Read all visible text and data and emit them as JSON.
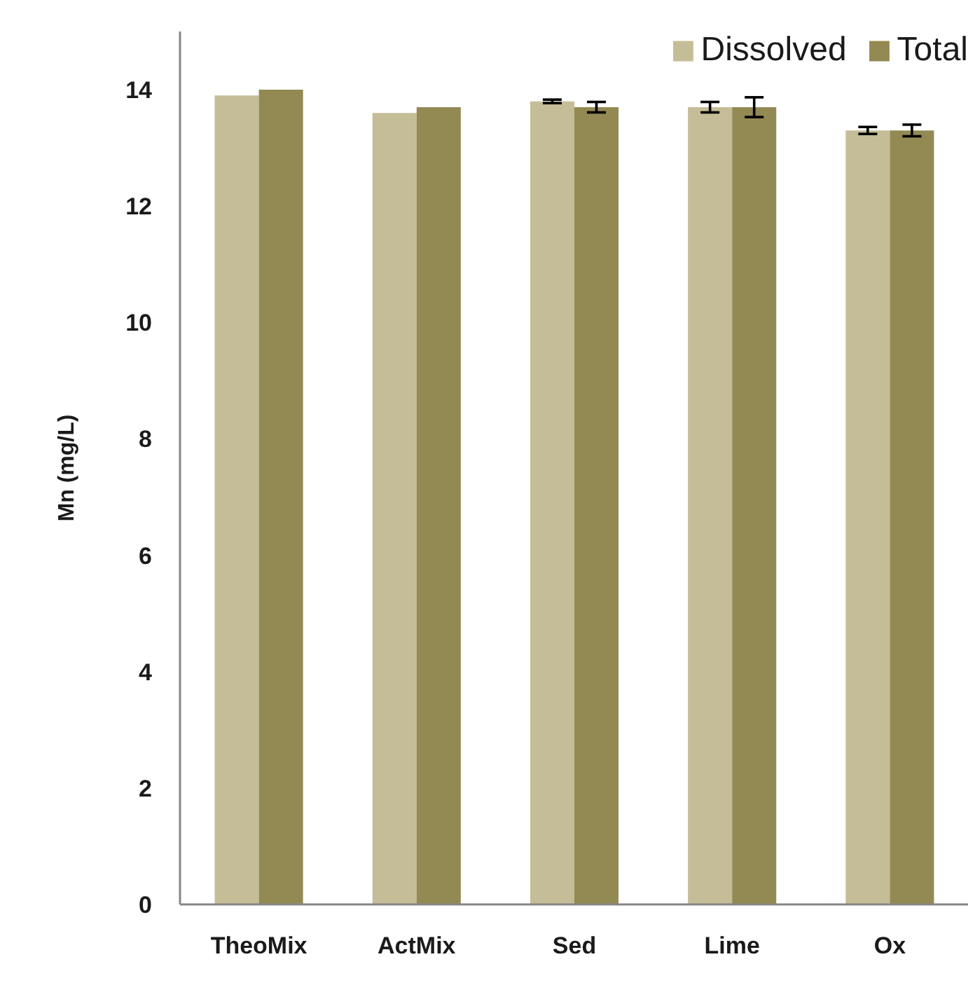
{
  "chart_data": {
    "type": "bar",
    "ylabel": "Mn (mg/L)",
    "categories": [
      "TheoMix",
      "ActMix",
      "Sed",
      "Lime",
      "Ox"
    ],
    "series": [
      {
        "name": "Dissolved",
        "color": "#c4bd97",
        "values": [
          13.9,
          13.6,
          13.8,
          13.7,
          13.3
        ],
        "errors": [
          null,
          null,
          0.03,
          0.09,
          0.06
        ]
      },
      {
        "name": "Total",
        "color": "#938953",
        "values": [
          14.0,
          13.7,
          13.7,
          13.7,
          13.3
        ],
        "errors": [
          null,
          null,
          0.09,
          0.17,
          0.1
        ]
      }
    ],
    "ylim": [
      0,
      15
    ],
    "yticks": [
      0,
      2,
      4,
      6,
      8,
      10,
      12,
      14
    ],
    "grid": false,
    "legend": "top right"
  }
}
